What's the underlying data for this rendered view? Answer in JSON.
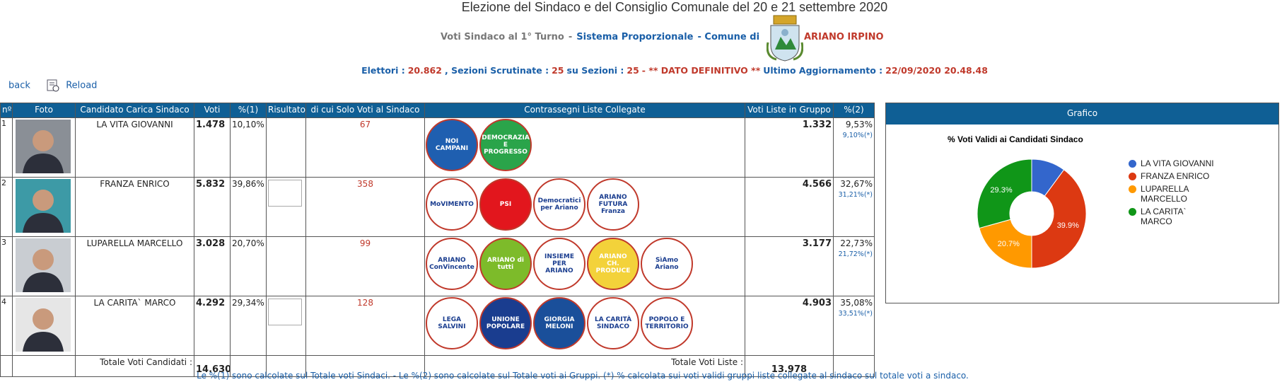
{
  "header": {
    "title": "Elezione del Sindaco e del Consiglio Comunale del 20 e 21 settembre 2020",
    "subtitle": [
      {
        "text": "Voti Sindaco al 1° Turno",
        "color": "#777777"
      },
      {
        "text": "-",
        "color": "#777777"
      },
      {
        "text": "Sistema Proporzionale",
        "color": "#1a5fa8"
      },
      {
        "text": "- Comune di",
        "color": "#1a5fa8"
      }
    ],
    "town": "ARIANO IRPINO",
    "stats": [
      {
        "text": "Elettori :",
        "color": "#1a5fa8"
      },
      {
        "text": "20.862",
        "color": "#c0392b"
      },
      {
        "text": ", Sezioni Scrutinate :",
        "color": "#1a5fa8"
      },
      {
        "text": "25",
        "color": "#c0392b"
      },
      {
        "text": "su Sezioni :",
        "color": "#1a5fa8"
      },
      {
        "text": "25",
        "color": "#c0392b"
      },
      {
        "text": "- ** DATO DEFINITIVO **",
        "color": "#c0392b"
      },
      {
        "text": "Ultimo Aggiornamento :",
        "color": "#1a5fa8"
      },
      {
        "text": "22/09/2020 20.48.48",
        "color": "#c0392b"
      }
    ]
  },
  "nav": {
    "back": "back",
    "reload": "Reload"
  },
  "table": {
    "headers": [
      "nº",
      "Foto",
      "Candidato Carica Sindaco",
      "Voti",
      "%(1)",
      "Risultato",
      "di cui Solo Voti al Sindaco",
      "Contrassegni Liste Collegate",
      "Voti Liste in Gruppo",
      "%(2)"
    ],
    "rows": [
      {
        "n": "1",
        "candidate": "LA VITA GIOVANNI",
        "votes": "1.478",
        "pct": "10,10%",
        "result_icon": false,
        "solo": "67",
        "list_votes": "1.332",
        "list_pct": "9,53%",
        "list_pct_star": "9,10%(*)",
        "logos": [
          {
            "label": "NOI CAMPANI",
            "color": "#1f5fb0"
          },
          {
            "label": "DEMOCRAZIA E PROGRESSO",
            "color": "#2aa44a"
          }
        ]
      },
      {
        "n": "2",
        "candidate": "FRANZA ENRICO",
        "votes": "5.832",
        "pct": "39,86%",
        "result_icon": true,
        "solo": "358",
        "list_votes": "4.566",
        "list_pct": "32,67%",
        "list_pct_star": "31,21%(*)",
        "logos": [
          {
            "label": "MoVIMENTO",
            "color": "#ffffff"
          },
          {
            "label": "PSI",
            "color": "#e2161d"
          },
          {
            "label": "Democratici per Ariano",
            "color": "#ffffff"
          },
          {
            "label": "ARIANO FUTURA Franza",
            "color": "#ffffff"
          }
        ]
      },
      {
        "n": "3",
        "candidate": "LUPARELLA MARCELLO",
        "votes": "3.028",
        "pct": "20,70%",
        "result_icon": false,
        "solo": "99",
        "list_votes": "3.177",
        "list_pct": "22,73%",
        "list_pct_star": "21,72%(*)",
        "logos": [
          {
            "label": "ARIANO ConVincente",
            "color": "#ffffff"
          },
          {
            "label": "ARIANO di tutti",
            "color": "#7dbb2a"
          },
          {
            "label": "INSIEME PER ARIANO",
            "color": "#ffffff"
          },
          {
            "label": "ARIANO CH. PRODUCE",
            "color": "#f3d23a"
          },
          {
            "label": "SìAmo Ariano",
            "color": "#ffffff"
          }
        ]
      },
      {
        "n": "4",
        "candidate": "LA CARITA` MARCO",
        "votes": "4.292",
        "pct": "29,34%",
        "result_icon": true,
        "solo": "128",
        "list_votes": "4.903",
        "list_pct": "35,08%",
        "list_pct_star": "33,51%(*)",
        "logos": [
          {
            "label": "LEGA SALVINI",
            "color": "#ffffff"
          },
          {
            "label": "UNIONE POPOLARE",
            "color": "#1a3d8f"
          },
          {
            "label": "GIORGIA MELONI",
            "color": "#1a4f9a"
          },
          {
            "label": "LA CARITÀ SINDACO",
            "color": "#ffffff"
          },
          {
            "label": "POPOLO E TERRITORIO",
            "color": "#ffffff"
          }
        ]
      }
    ],
    "total_candidates_label": "Totale Voti Candidati :",
    "total_candidates": "14.630",
    "total_lists_label": "Totale Voti Liste :",
    "total_lists": "13.978",
    "footnote": "Le %(1) sono calcolate sul Totale voti Sindaci. - Le %(2) sono calcolate sul Totale voti ai Gruppi. (*) % calcolata sui voti validi  gruppi liste collegate al sindaco sul totale voti a sindaco."
  },
  "chart_data": {
    "type": "pie",
    "panel_title": "Grafico",
    "title": "% Voti Validi ai Candidati Sindaco",
    "categories": [
      "LA VITA GIOVANNI",
      "FRANZA ENRICO",
      "LUPARELLA MARCELLO",
      "LA CARITA` MARCO"
    ],
    "values": [
      10.1,
      39.9,
      20.7,
      29.3
    ],
    "value_labels": [
      null,
      "39.9%",
      "20.7%",
      "29.3%"
    ],
    "colors": [
      "#3366cc",
      "#dc3912",
      "#ff9900",
      "#109618"
    ],
    "legend": "right"
  }
}
